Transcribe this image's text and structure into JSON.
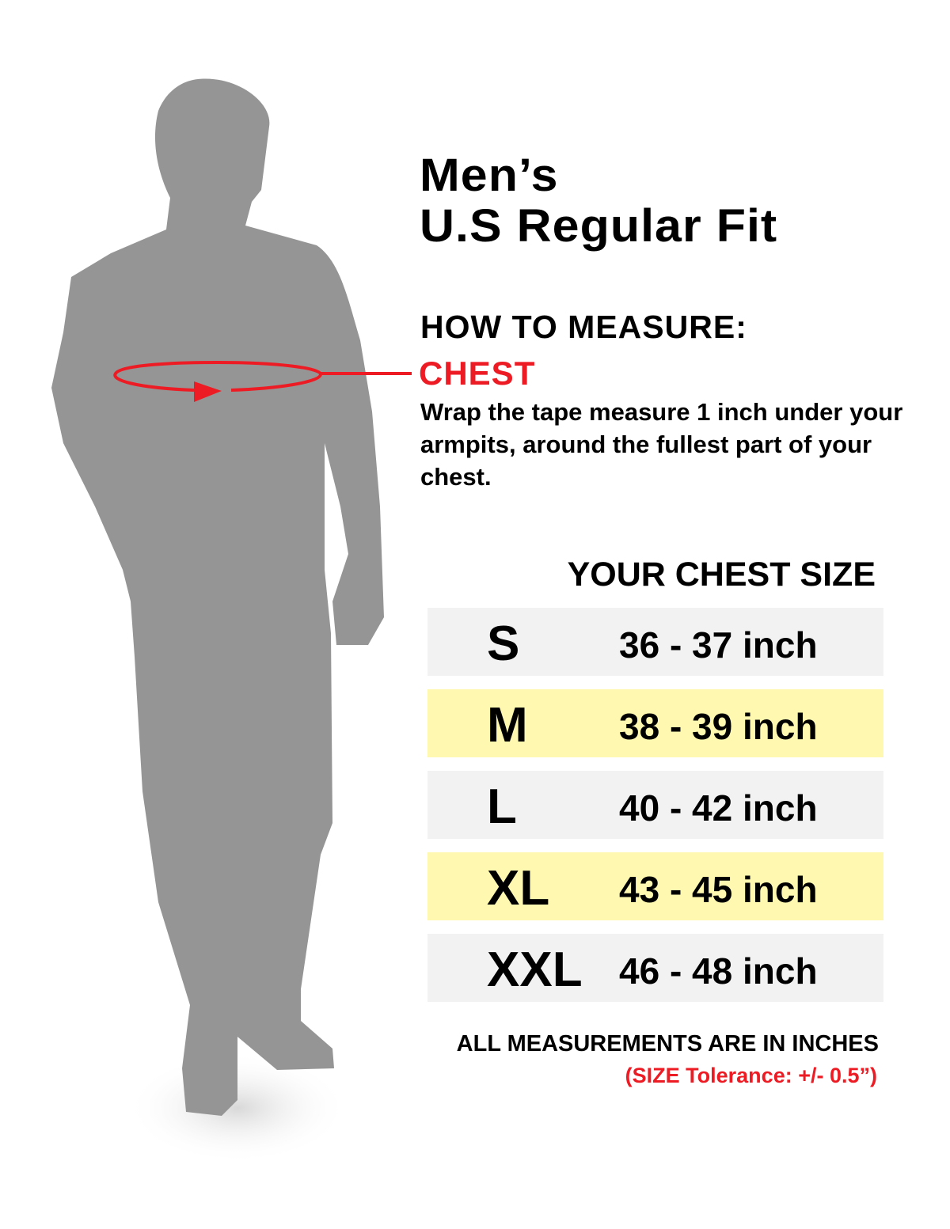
{
  "title": {
    "line1": "Men’s",
    "line2": "U.S Regular Fit"
  },
  "how_to_measure": {
    "heading": "HOW TO MEASURE:",
    "part": "CHEST",
    "instructions": "Wrap the tape measure 1 inch under your armpits, around the fullest part of your chest."
  },
  "table": {
    "heading": "YOUR CHEST SIZE",
    "rows": [
      {
        "size": "S",
        "range": "36 - 37 inch",
        "color": "#f2f2f2"
      },
      {
        "size": "M",
        "range": "38 - 39 inch",
        "color": "#fff8b0"
      },
      {
        "size": "L",
        "range": "40 - 42 inch",
        "color": "#f2f2f2"
      },
      {
        "size": "XL",
        "range": "43 - 45 inch",
        "color": "#fff8b0"
      },
      {
        "size": "XXL",
        "range": "46 - 48 inch",
        "color": "#f2f2f2"
      }
    ]
  },
  "footer": {
    "note": "ALL MEASUREMENTS ARE IN INCHES",
    "tolerance": "(SIZE Tolerance: +/- 0.5”)"
  },
  "colors": {
    "accent": "#ed1c24",
    "silhouette": "#959595"
  }
}
